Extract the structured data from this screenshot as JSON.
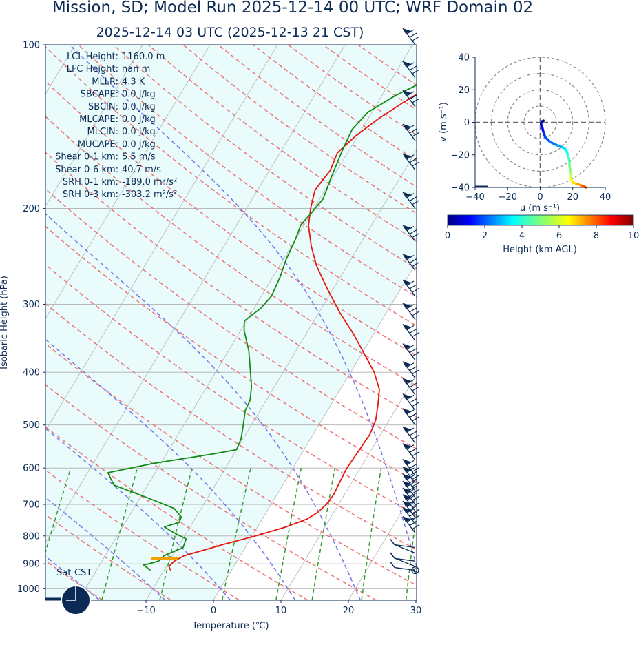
{
  "header": {
    "title": "Mission, SD; Model Run 2025-12-14 00 UTC; WRF Domain 02",
    "subtitle": "2025-12-14 03 UTC  (2025-12-13 21 CST)"
  },
  "chart_data": [
    {
      "type": "skew-t",
      "xlabel": "Temperature (℃)",
      "ylabel": "Isobaric Height (hPa)",
      "xlim": [
        -35,
        30
      ],
      "ylim": [
        1050,
        100
      ],
      "log_y": true,
      "grid": true,
      "x_ticks": [
        "−10",
        "0",
        "10",
        "20",
        "30"
      ],
      "x_tick_values": [
        -10,
        0,
        10,
        20,
        30
      ],
      "y_ticks": [
        "100",
        "200",
        "300",
        "400",
        "500",
        "600",
        "700",
        "800",
        "900",
        "1000"
      ],
      "y_tick_values": [
        100,
        200,
        300,
        400,
        500,
        600,
        700,
        800,
        900,
        1000
      ],
      "stats": [
        {
          "label": "LCL Height:",
          "value": "1160.0 m"
        },
        {
          "label": "LFC Height:",
          "value": "nan m"
        },
        {
          "label": "MLLR:",
          "value": "4.3 K"
        },
        {
          "label": "SBCAPE:",
          "value": "0.0 J/kg"
        },
        {
          "label": "SBCIN:",
          "value": "0.0 J/kg"
        },
        {
          "label": "MLCAPE:",
          "value": "0.0 J/kg"
        },
        {
          "label": "MLCIN:",
          "value": "0.0 J/kg"
        },
        {
          "label": "MUCAPE:",
          "value": "0.0 J/kg"
        },
        {
          "label": "Shear 0-1 km:",
          "value": "5.5 m/s"
        },
        {
          "label": "Shear 0-6 km:",
          "value": "40.7 m/s"
        },
        {
          "label": "SRH 0-1 km:",
          "value": "-189.0 m²/s²"
        },
        {
          "label": "SRH 0-3 km:",
          "value": "-303.2 m²/s²"
        }
      ],
      "sky_label": "Sat-CST",
      "series": [
        {
          "name": "",
          "color": "#e8140e",
          "points": [
            [
              -9.0,
              925
            ],
            [
              -9.6,
              910
            ],
            [
              -9.3,
              890
            ],
            [
              -8.3,
              870
            ],
            [
              -6.0,
              850
            ],
            [
              -3.6,
              830
            ],
            [
              0.5,
              800
            ],
            [
              4.2,
              770
            ],
            [
              6.6,
              745
            ],
            [
              7.6,
              725
            ],
            [
              8.2,
              700
            ],
            [
              8.4,
              670
            ],
            [
              8.2,
              640
            ],
            [
              8.0,
              600
            ],
            [
              8.2,
              560
            ],
            [
              8.4,
              520
            ],
            [
              8.0,
              490
            ],
            [
              7.0,
              460
            ],
            [
              5.8,
              430
            ],
            [
              3.5,
              400
            ],
            [
              0.4,
              370
            ],
            [
              -3.0,
              340
            ],
            [
              -7.0,
              310
            ],
            [
              -11.0,
              280
            ],
            [
              -14.5,
              255
            ],
            [
              -17.0,
              235
            ],
            [
              -19.3,
              215
            ],
            [
              -20.5,
              200
            ],
            [
              -21.5,
              185
            ],
            [
              -21.0,
              170
            ],
            [
              -21.5,
              158
            ],
            [
              -20.3,
              147
            ],
            [
              -18.5,
              137
            ],
            [
              -16.3,
              128
            ],
            [
              -14.0,
              120
            ],
            [
              -12.8,
              116
            ],
            [
              -11.0,
              111
            ],
            [
              -9.2,
              106
            ],
            [
              -7.6,
              101
            ]
          ]
        },
        {
          "name": "",
          "color": "#138a13",
          "points": [
            [
              -12.0,
              925
            ],
            [
              -12.7,
              915
            ],
            [
              -13.5,
              905
            ],
            [
              -11.6,
              890
            ],
            [
              -11.3,
              870
            ],
            [
              -9.2,
              840
            ],
            [
              -9.5,
              810
            ],
            [
              -11.8,
              790
            ],
            [
              -13.8,
              770
            ],
            [
              -12.0,
              755
            ],
            [
              -12.2,
              738
            ],
            [
              -14.0,
              712
            ],
            [
              -19.0,
              680
            ],
            [
              -25.0,
              645
            ],
            [
              -27.0,
              612
            ],
            [
              -21.0,
              588
            ],
            [
              -13.0,
              565
            ],
            [
              -10.0,
              555
            ],
            [
              -10.3,
              530
            ],
            [
              -11.2,
              500
            ],
            [
              -12.2,
              470
            ],
            [
              -12.4,
              450
            ],
            [
              -13.4,
              425
            ],
            [
              -15.0,
              397
            ],
            [
              -17.0,
              365
            ],
            [
              -19.5,
              335
            ],
            [
              -20.3,
              322
            ],
            [
              -19.0,
              305
            ],
            [
              -18.5,
              290
            ],
            [
              -18.9,
              268
            ],
            [
              -19.6,
              248
            ],
            [
              -20.0,
              228
            ],
            [
              -20.5,
              214
            ],
            [
              -20.0,
              204
            ],
            [
              -19.5,
              192
            ],
            [
              -20.2,
              176
            ],
            [
              -21.0,
              156
            ],
            [
              -21.4,
              143
            ],
            [
              -20.6,
              133
            ],
            [
              -18.0,
              124
            ],
            [
              -13.8,
              114
            ],
            [
              -9.8,
              101
            ]
          ]
        },
        {
          "name": "",
          "color": "#f0a000",
          "points": [
            [
              -13.0,
              880
            ],
            [
              -9.0,
              880
            ]
          ]
        }
      ],
      "wind_barbs": [
        100,
        115,
        130,
        150,
        170,
        200,
        230,
        260,
        290,
        320,
        350,
        380,
        410,
        440,
        470,
        500,
        540,
        580,
        620,
        640,
        660,
        680,
        700,
        720,
        740,
        760,
        790,
        840,
        860,
        890,
        910,
        925
      ]
    },
    {
      "type": "hodograph",
      "xlabel": "u (m s⁻¹)",
      "ylabel": "v (m s⁻¹)",
      "xlim": [
        -40,
        40
      ],
      "ylim": [
        -40,
        40
      ],
      "x_ticks": [
        "−40",
        "−20",
        "0",
        "20",
        "40"
      ],
      "x_tick_values": [
        -40,
        -20,
        0,
        20,
        40
      ],
      "y_ticks": [
        "40",
        "20",
        "0",
        "−20",
        "−40"
      ],
      "y_tick_values": [
        40,
        20,
        0,
        -20,
        -40
      ],
      "rings": [
        10,
        20,
        30,
        40
      ],
      "points": [
        [
          2,
          1,
          0.2
        ],
        [
          1,
          0.5,
          0.5
        ],
        [
          0.5,
          -1,
          0.8
        ],
        [
          1.2,
          -3,
          1.2
        ],
        [
          2,
          -6,
          1.6
        ],
        [
          3,
          -9,
          2.0
        ],
        [
          6,
          -12,
          2.4
        ],
        [
          10,
          -14,
          2.8
        ],
        [
          13,
          -15,
          3.2
        ],
        [
          15,
          -16,
          3.6
        ],
        [
          16,
          -17,
          3.9
        ],
        [
          17,
          -20,
          4.3
        ],
        [
          18,
          -24,
          4.7
        ],
        [
          18,
          -27,
          5.0
        ],
        [
          19,
          -31,
          5.4
        ],
        [
          19,
          -33,
          5.8
        ],
        [
          19,
          -35,
          6.2
        ],
        [
          20,
          -37,
          6.6
        ],
        [
          23,
          -38,
          7.2
        ],
        [
          26,
          -39,
          8.0
        ],
        [
          28,
          -40,
          8.5
        ]
      ],
      "colorbar": {
        "label": "Height (km AGL)",
        "ticks": [
          "0",
          "2",
          "4",
          "6",
          "8",
          "10"
        ],
        "tick_values": [
          0,
          2,
          4,
          6,
          8,
          10
        ],
        "range": [
          0,
          10
        ],
        "colormap": "jet"
      }
    }
  ]
}
